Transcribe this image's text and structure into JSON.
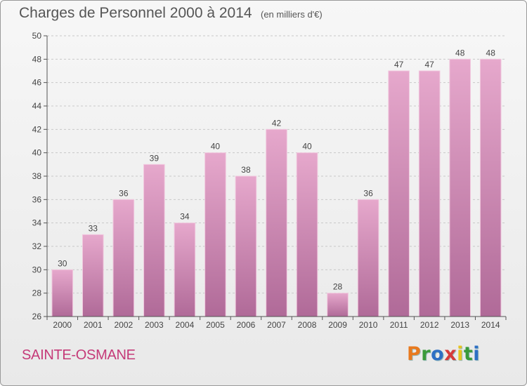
{
  "title": "Charges de Personnel 2000 à 2014",
  "subtitle": "(en milliers d'€)",
  "commune": "SAINTE-OSMANE",
  "logo": {
    "letters": [
      "P",
      "r",
      "o",
      "x",
      "i",
      "t",
      "i"
    ],
    "colors": [
      "#e8791e",
      "#3a9a3a",
      "#2d6fc4",
      "#d63a3a",
      "#e8c41e",
      "#3a9a3a",
      "#2d6fc4"
    ]
  },
  "colors": {
    "bar_top": "#e6a8cc",
    "bar_bottom": "#b06a98",
    "axis": "#555555",
    "grid": "#c8c8c8"
  },
  "chart_data": {
    "type": "bar",
    "categories": [
      "2000",
      "2001",
      "2002",
      "2003",
      "2004",
      "2005",
      "2006",
      "2007",
      "2008",
      "2009",
      "2010",
      "2011",
      "2012",
      "2013",
      "2014"
    ],
    "values": [
      30,
      33,
      36,
      39,
      34,
      40,
      38,
      42,
      40,
      28,
      36,
      47,
      47,
      48,
      48
    ],
    "ylim": [
      26,
      50
    ],
    "yticks": [
      26,
      28,
      30,
      32,
      34,
      36,
      38,
      40,
      42,
      44,
      46,
      48,
      50
    ],
    "grid": true,
    "data_labels": true
  }
}
